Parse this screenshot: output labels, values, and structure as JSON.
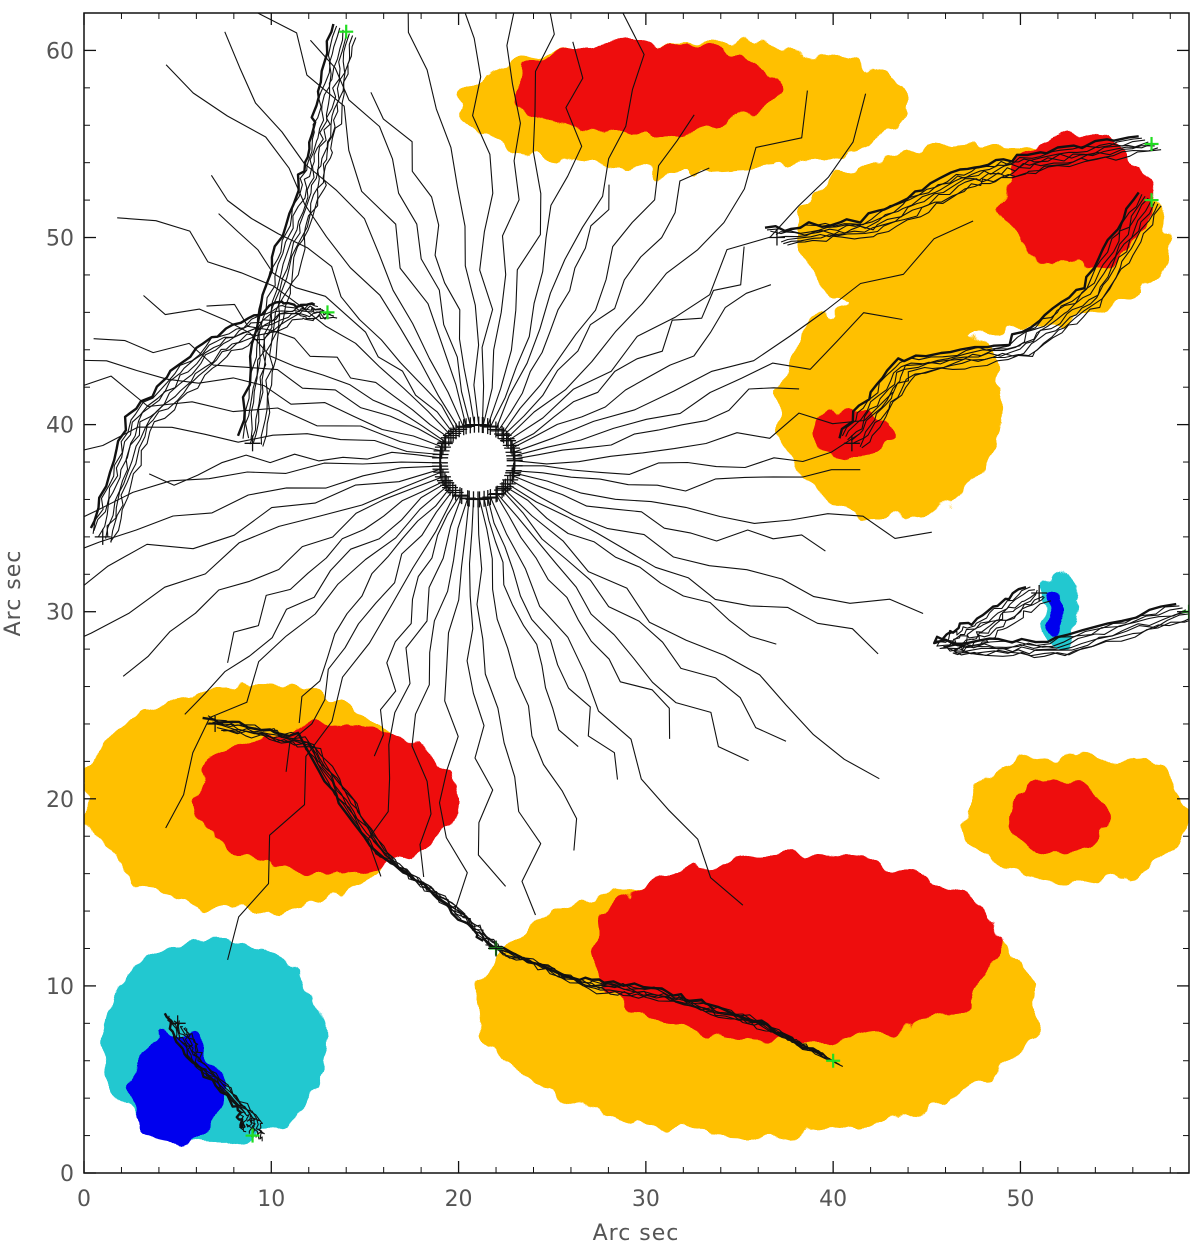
{
  "chart_data": {
    "type": "scatter",
    "xlabel": "Arc sec",
    "ylabel": "Arc sec",
    "xlim": [
      0,
      59
    ],
    "ylim": [
      0,
      62
    ],
    "x_ticks": [
      0,
      10,
      20,
      30,
      40,
      50
    ],
    "y_ticks": [
      0,
      10,
      20,
      30,
      40,
      50,
      60
    ],
    "grid": false,
    "legend": "none",
    "colors": {
      "region_strong_positive": "#ee1111",
      "region_weak_positive": "#ffc000",
      "region_strong_negative": "#0000ee",
      "region_weak_negative": "#22c8d0",
      "trajectory": "#111111",
      "marker_end": "#22dd22"
    },
    "regions": [
      {
        "polarity": "weak-positive",
        "center": [
          32,
          57
        ],
        "extent": [
          24,
          7
        ]
      },
      {
        "polarity": "strong-positive",
        "center": [
          30,
          58
        ],
        "extent": [
          14,
          5
        ]
      },
      {
        "polarity": "weak-positive",
        "center": [
          48,
          50
        ],
        "extent": [
          20,
          10
        ]
      },
      {
        "polarity": "strong-positive",
        "center": [
          53,
          52
        ],
        "extent": [
          8,
          7
        ]
      },
      {
        "polarity": "weak-positive",
        "center": [
          43,
          41
        ],
        "extent": [
          12,
          12
        ]
      },
      {
        "polarity": "strong-positive",
        "center": [
          41,
          39.5
        ],
        "extent": [
          4,
          3
        ]
      },
      {
        "polarity": "weak-positive",
        "center": [
          9,
          20
        ],
        "extent": [
          18,
          12
        ]
      },
      {
        "polarity": "strong-positive",
        "center": [
          13,
          20
        ],
        "extent": [
          14,
          8
        ]
      },
      {
        "polarity": "weak-positive",
        "center": [
          36,
          9
        ],
        "extent": [
          30,
          14
        ]
      },
      {
        "polarity": "strong-positive",
        "center": [
          38,
          12
        ],
        "extent": [
          22,
          10
        ]
      },
      {
        "polarity": "weak-positive",
        "center": [
          53,
          19
        ],
        "extent": [
          12,
          7
        ]
      },
      {
        "polarity": "strong-positive",
        "center": [
          52,
          19
        ],
        "extent": [
          5,
          4
        ]
      },
      {
        "polarity": "weak-negative",
        "center": [
          7,
          7
        ],
        "extent": [
          12,
          11
        ]
      },
      {
        "polarity": "strong-negative",
        "center": [
          5,
          4.5
        ],
        "extent": [
          5,
          6
        ]
      },
      {
        "polarity": "weak-negative",
        "center": [
          52,
          30
        ],
        "extent": [
          2,
          4
        ]
      },
      {
        "polarity": "strong-negative",
        "center": [
          51.8,
          30
        ],
        "extent": [
          1,
          2.5
        ]
      }
    ],
    "tracks": [
      {
        "cluster": "upper-left",
        "points": [
          [
            1,
            34
          ],
          [
            3,
            40
          ],
          [
            7,
            44
          ],
          [
            11,
            46
          ],
          [
            13,
            46
          ]
        ]
      },
      {
        "cluster": "upper-left",
        "points": [
          [
            9,
            39
          ],
          [
            10,
            46
          ],
          [
            12,
            52
          ],
          [
            13,
            56
          ],
          [
            14,
            61
          ]
        ]
      },
      {
        "cluster": "upper-right",
        "points": [
          [
            37,
            50
          ],
          [
            42,
            50.5
          ],
          [
            47,
            53
          ],
          [
            51,
            54
          ],
          [
            57,
            55
          ]
        ]
      },
      {
        "cluster": "upper-right",
        "points": [
          [
            41,
            39
          ],
          [
            44,
            43
          ],
          [
            50,
            44
          ],
          [
            54,
            47
          ],
          [
            57,
            52
          ]
        ]
      },
      {
        "cluster": "lower-left",
        "points": [
          [
            7,
            24
          ],
          [
            12,
            23
          ],
          [
            16,
            17
          ],
          [
            20,
            14
          ],
          [
            22,
            12
          ]
        ]
      },
      {
        "cluster": "lower-center",
        "points": [
          [
            22,
            12
          ],
          [
            27,
            10
          ],
          [
            31,
            9.5
          ],
          [
            36,
            8
          ],
          [
            40,
            6
          ]
        ]
      },
      {
        "cluster": "lower-left",
        "points": [
          [
            5,
            8
          ],
          [
            6,
            6
          ],
          [
            9,
            3
          ],
          [
            9,
            2
          ]
        ]
      },
      {
        "cluster": "right-middle",
        "points": [
          [
            51,
            31
          ],
          [
            48,
            29
          ],
          [
            46,
            28
          ],
          [
            52,
            28
          ],
          [
            59,
            30
          ]
        ]
      }
    ]
  }
}
